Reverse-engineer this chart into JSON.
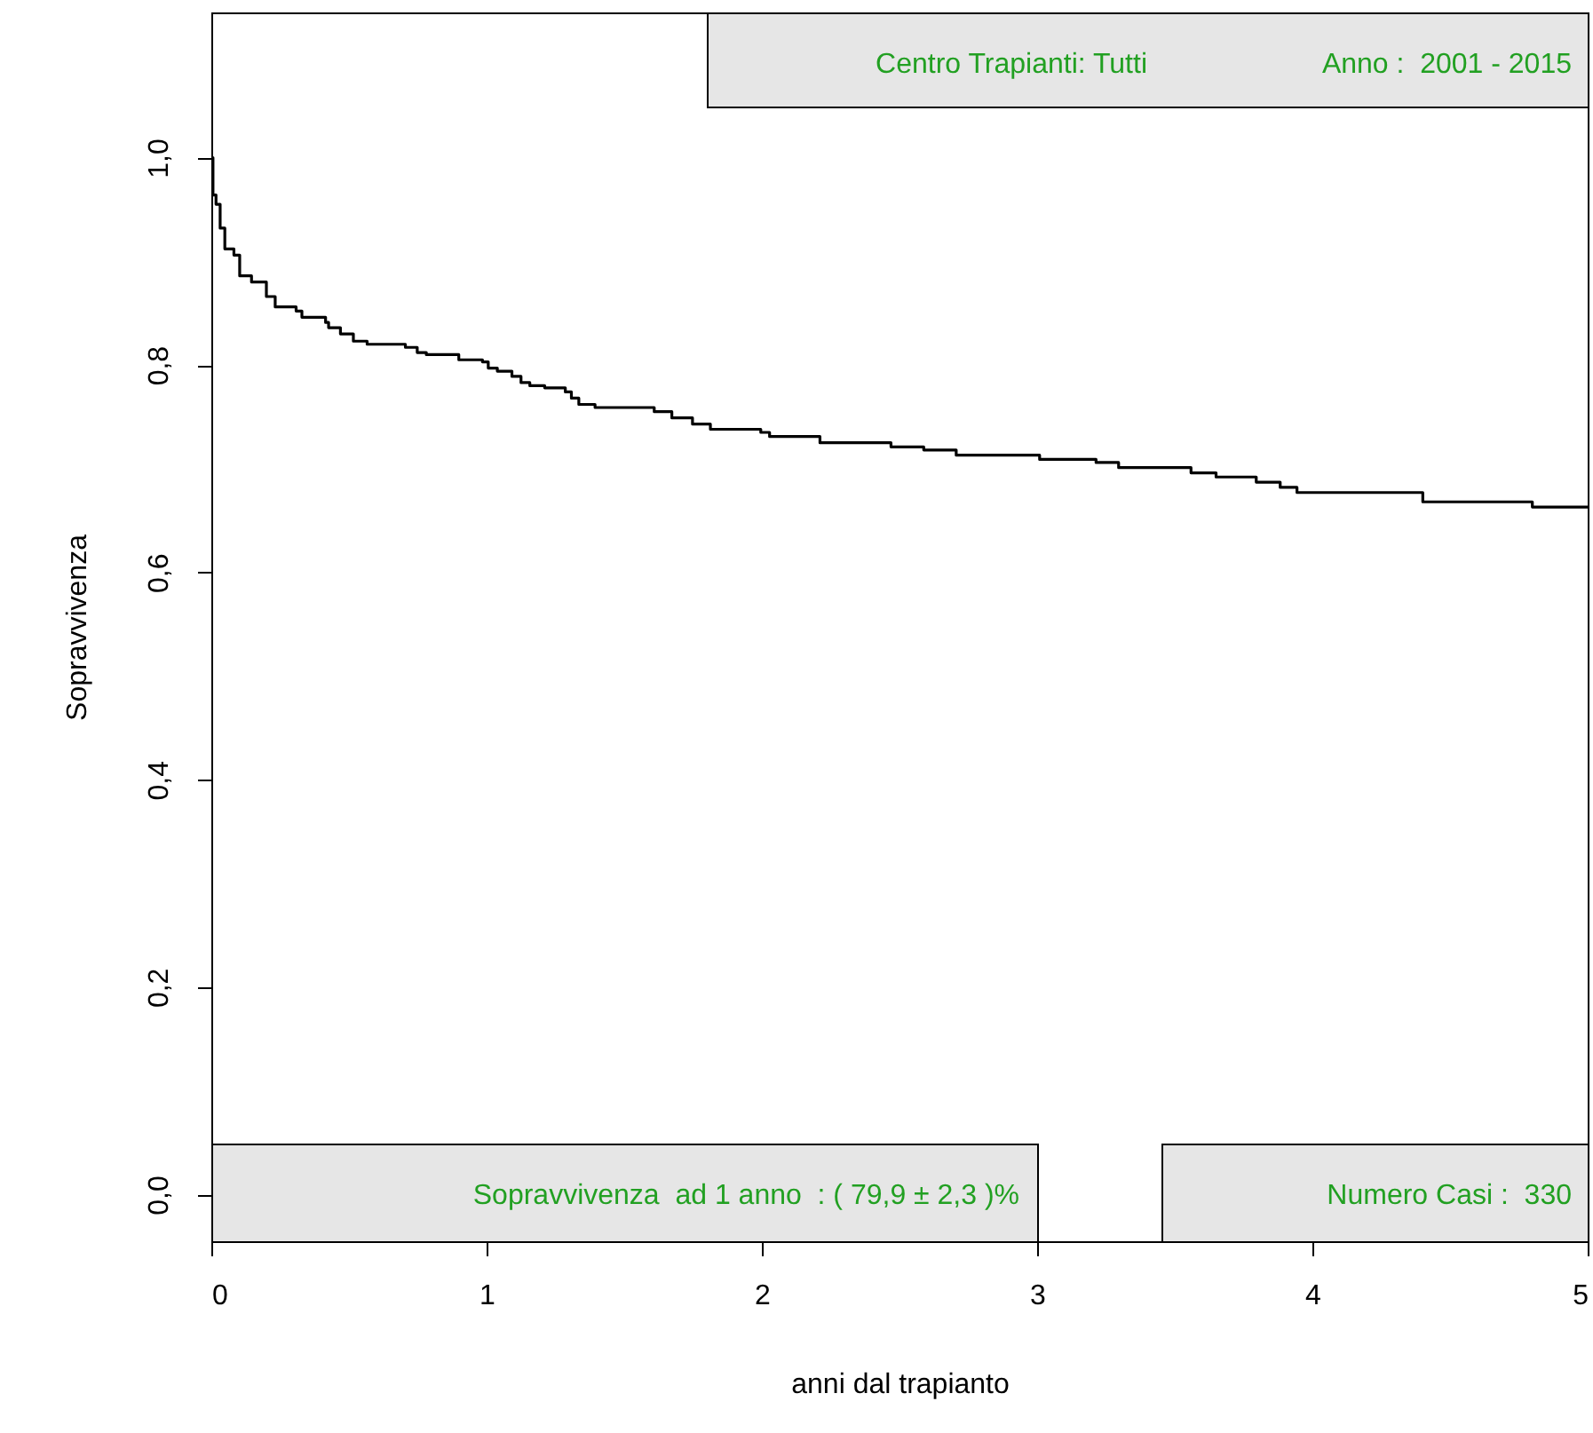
{
  "chart_data": {
    "type": "step",
    "xlabel": "anni dal trapianto",
    "ylabel": "Sopravvivenza",
    "annotations": [
      "Centro Trapianti: Tutti",
      "Anno :  2001 - 2015",
      "Sopravvivenza  ad 1 anno  : ( 79,9 ± 2,3 )%",
      "Numero Casi :  330"
    ],
    "x": [
      0,
      0.006,
      0.017,
      0.032,
      0.049,
      0.082,
      0.103,
      0.146,
      0.2,
      0.232,
      0.308,
      0.329,
      0.415,
      0.426,
      0.469,
      0.516,
      0.566,
      0.705,
      0.748,
      0.781,
      0.899,
      0.985,
      1.006,
      1.039,
      1.092,
      1.125,
      1.157,
      1.211,
      1.286,
      1.308,
      1.335,
      1.394,
      1.609,
      1.673,
      1.748,
      1.813,
      1.996,
      2.028,
      2.211,
      2.469,
      2.588,
      2.706,
      3.009,
      3.214,
      3.296,
      3.559,
      3.65,
      3.796,
      3.883,
      3.944,
      4.401,
      4.799,
      5
    ],
    "values": [
      1.0,
      0.964,
      0.955,
      0.932,
      0.912,
      0.906,
      0.886,
      0.88,
      0.866,
      0.856,
      0.852,
      0.846,
      0.841,
      0.836,
      0.83,
      0.823,
      0.82,
      0.817,
      0.812,
      0.81,
      0.805,
      0.803,
      0.797,
      0.794,
      0.789,
      0.783,
      0.78,
      0.778,
      0.774,
      0.768,
      0.762,
      0.759,
      0.755,
      0.749,
      0.743,
      0.738,
      0.735,
      0.731,
      0.725,
      0.721,
      0.718,
      0.713,
      0.709,
      0.706,
      0.701,
      0.696,
      0.692,
      0.687,
      0.682,
      0.677,
      0.668,
      0.663,
      0.663
    ],
    "color": "#000000",
    "xlim": [
      0,
      5
    ],
    "xticks": [
      0,
      1,
      2,
      3,
      4,
      5
    ],
    "ylim": [
      -0.045,
      1.14
    ],
    "yticks": [
      {
        "value": 0,
        "label": "0,0"
      },
      {
        "value": 0.2,
        "label": "0,2"
      },
      {
        "value": 0.4,
        "label": "0,4"
      },
      {
        "value": 0.6,
        "label": "0,6"
      },
      {
        "value": 0.8,
        "label": "0,8"
      },
      {
        "value": 1.0,
        "label": "1,0"
      }
    ]
  }
}
